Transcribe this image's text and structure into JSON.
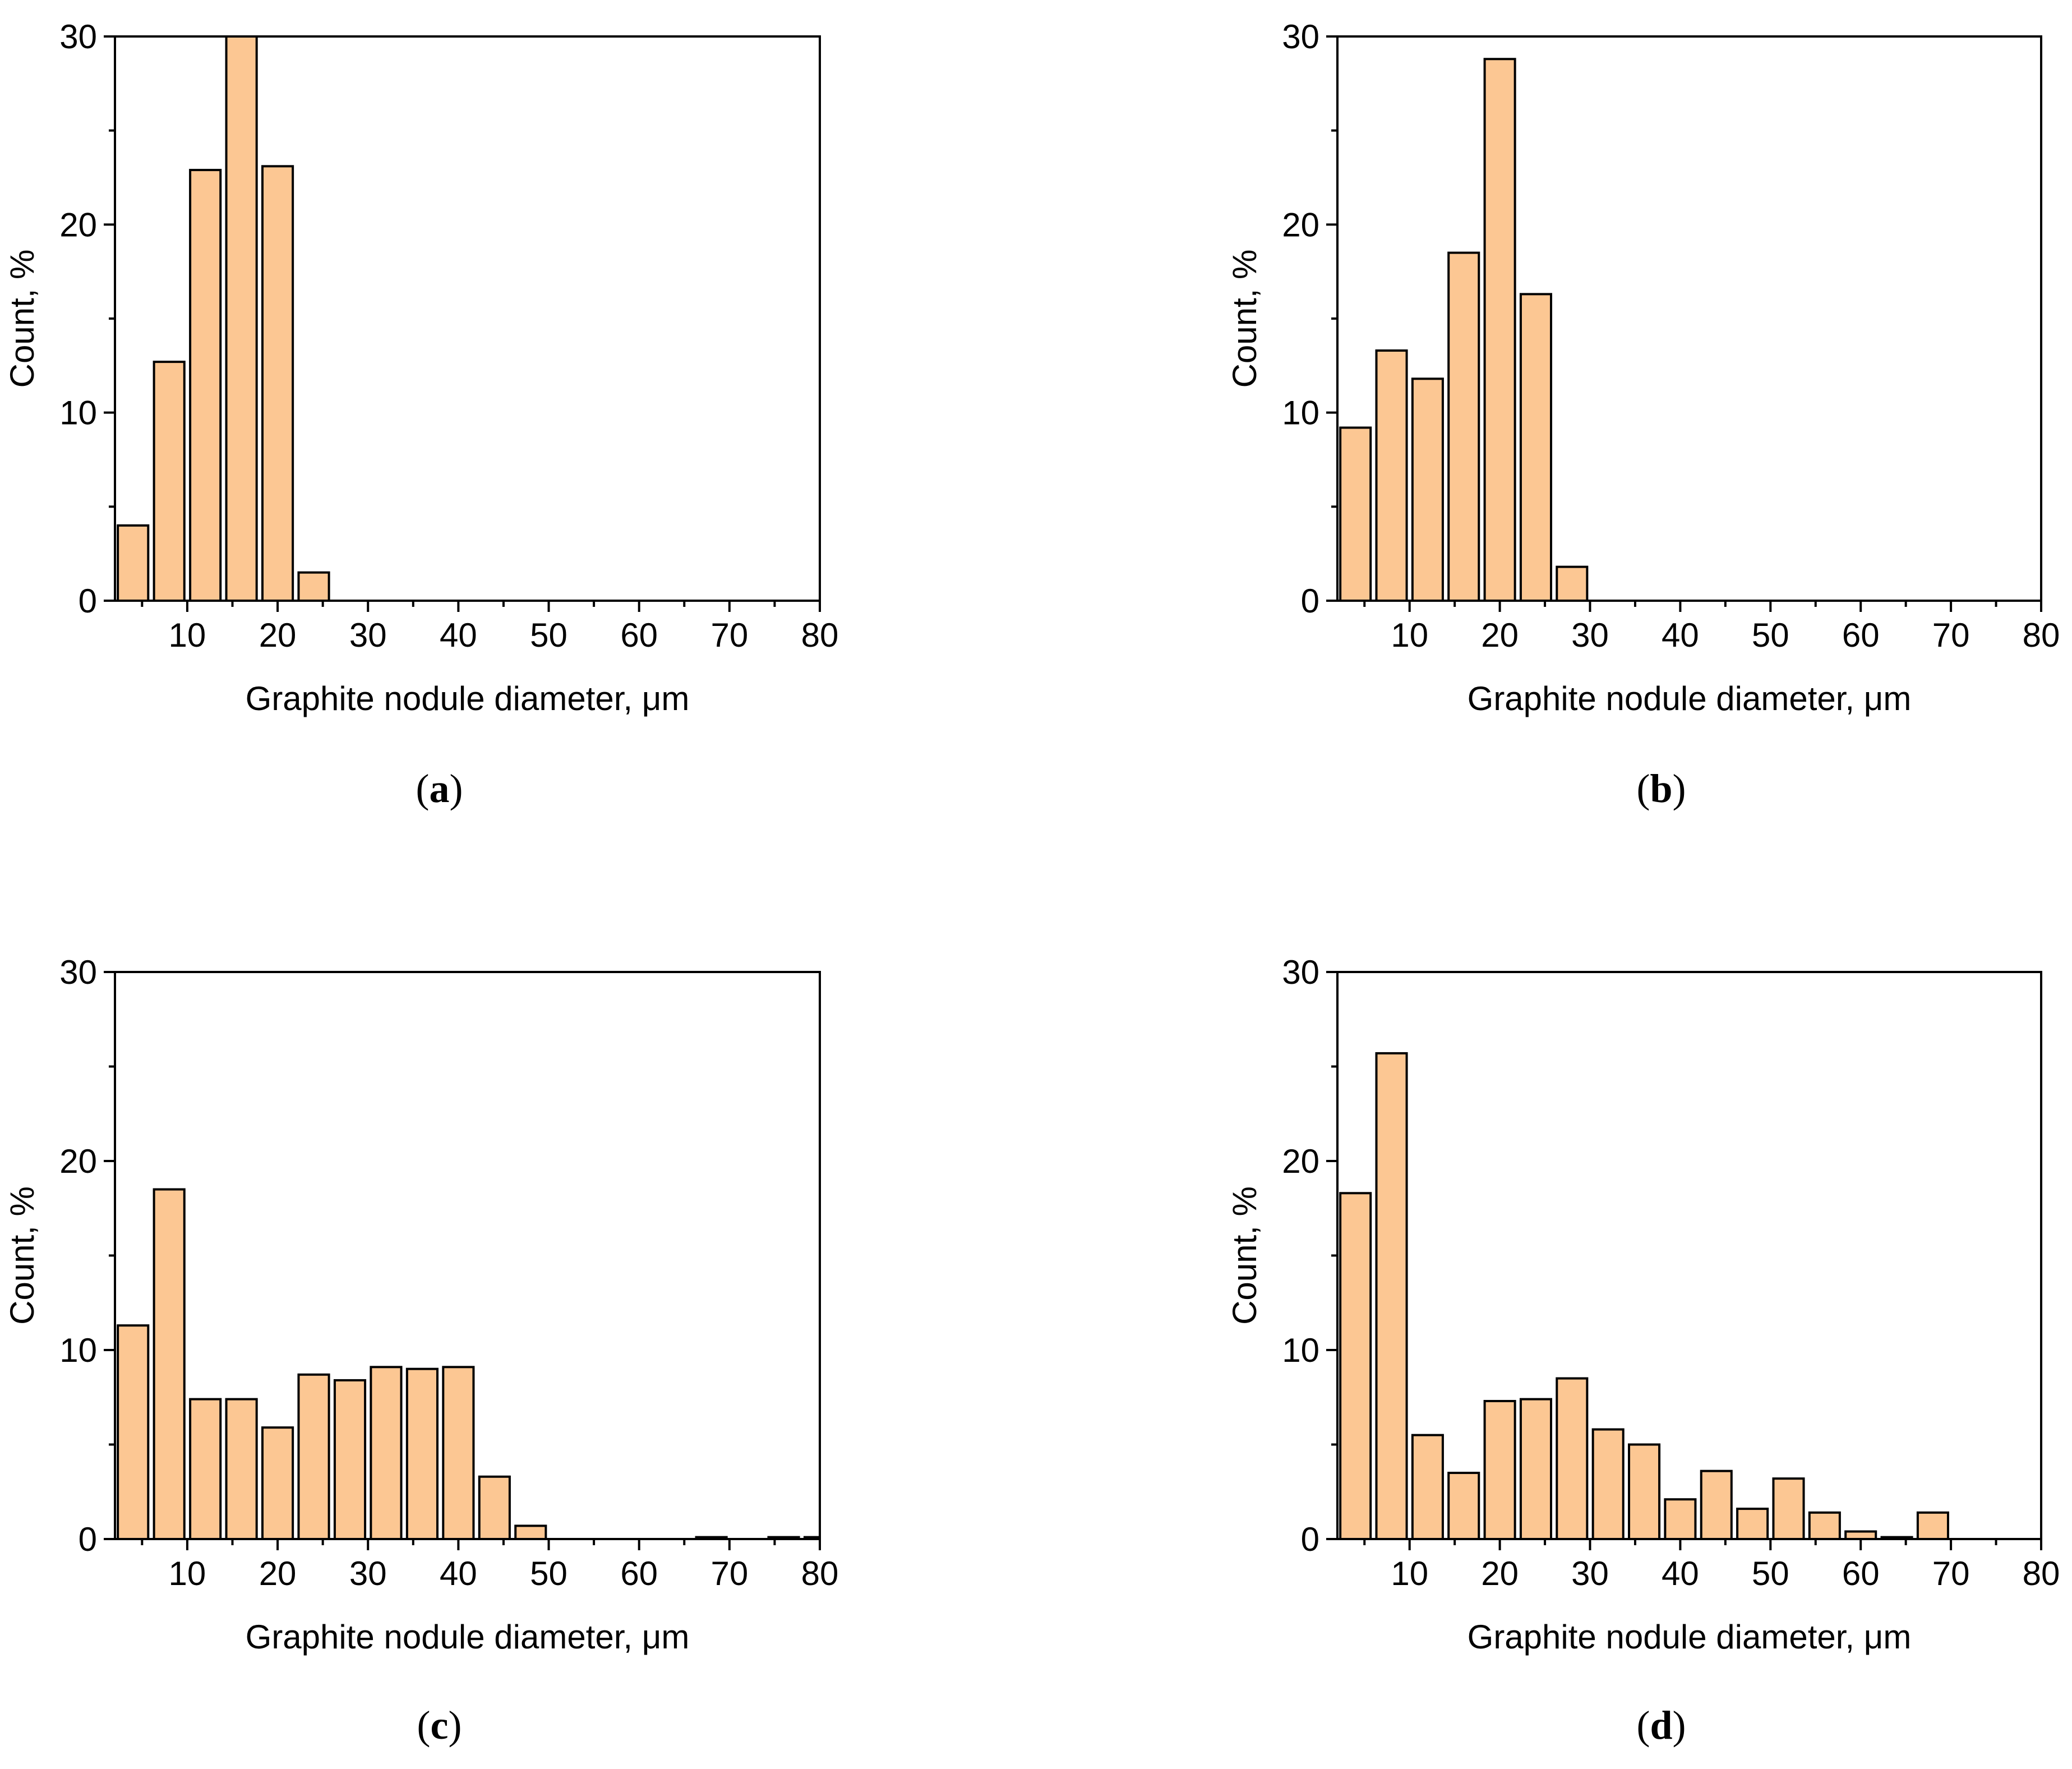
{
  "colors": {
    "bar_fill": "#fcc793",
    "bar_stroke": "#000000",
    "axis": "#000000"
  },
  "chart_data": [
    {
      "type": "bar",
      "panel_label": "a",
      "xlabel": "Graphite nodule diameter, μm",
      "ylabel": "Count, %",
      "xlim": [
        2,
        80
      ],
      "ylim": [
        0,
        30
      ],
      "xticks": [
        "10",
        "20",
        "30",
        "40",
        "50",
        "60",
        "70",
        "80"
      ],
      "yticks": [
        "0",
        "10",
        "20",
        "30"
      ],
      "bin_width": 4,
      "bins": [
        4,
        8,
        12,
        16,
        20,
        24,
        28,
        32,
        36,
        40,
        44,
        48,
        52,
        56,
        60,
        64,
        68,
        72,
        76,
        80
      ],
      "values": [
        4.0,
        12.7,
        22.9,
        30.0,
        23.1,
        1.5,
        0,
        0,
        0,
        0,
        0,
        0,
        0,
        0,
        0,
        0,
        0,
        0,
        0,
        0
      ]
    },
    {
      "type": "bar",
      "panel_label": "b",
      "xlabel": "Graphite nodule diameter, μm",
      "ylabel": "Count, %",
      "xlim": [
        2,
        80
      ],
      "ylim": [
        0,
        30
      ],
      "xticks": [
        "10",
        "20",
        "30",
        "40",
        "50",
        "60",
        "70",
        "80"
      ],
      "yticks": [
        "0",
        "10",
        "20",
        "30"
      ],
      "bin_width": 4,
      "bins": [
        4,
        8,
        12,
        16,
        20,
        24,
        28,
        32,
        36,
        40,
        44,
        48,
        52,
        56,
        60,
        64,
        68,
        72,
        76,
        80
      ],
      "values": [
        9.2,
        13.3,
        11.8,
        18.5,
        28.8,
        16.3,
        1.8,
        0,
        0,
        0,
        0,
        0,
        0,
        0,
        0,
        0,
        0,
        0,
        0,
        0
      ]
    },
    {
      "type": "bar",
      "panel_label": "c",
      "xlabel": "Graphite nodule diameter, μm",
      "ylabel": "Count, %",
      "xlim": [
        2,
        80
      ],
      "ylim": [
        0,
        30
      ],
      "xticks": [
        "10",
        "20",
        "30",
        "40",
        "50",
        "60",
        "70",
        "80"
      ],
      "yticks": [
        "0",
        "10",
        "20",
        "30"
      ],
      "bin_width": 4,
      "bins": [
        4,
        8,
        12,
        16,
        20,
        24,
        28,
        32,
        36,
        40,
        44,
        48,
        52,
        56,
        60,
        64,
        68,
        72,
        76,
        80
      ],
      "values": [
        11.3,
        18.5,
        7.4,
        7.4,
        5.9,
        8.7,
        8.4,
        9.1,
        9.0,
        9.1,
        3.3,
        0.7,
        0,
        0,
        0,
        0,
        0.1,
        0,
        0.1,
        0.1
      ]
    },
    {
      "type": "bar",
      "panel_label": "d",
      "xlabel": "Graphite nodule diameter, μm",
      "ylabel": "Count, %",
      "xlim": [
        2,
        80
      ],
      "ylim": [
        0,
        30
      ],
      "xticks": [
        "10",
        "20",
        "30",
        "40",
        "50",
        "60",
        "70",
        "80"
      ],
      "yticks": [
        "0",
        "10",
        "20",
        "30"
      ],
      "bin_width": 4,
      "bins": [
        4,
        8,
        12,
        16,
        20,
        24,
        28,
        32,
        36,
        40,
        44,
        48,
        52,
        56,
        60,
        64,
        68,
        72,
        76,
        80
      ],
      "values": [
        18.3,
        25.7,
        5.5,
        3.5,
        7.3,
        7.4,
        8.5,
        5.8,
        5.0,
        2.1,
        3.6,
        1.6,
        3.2,
        1.4,
        0.4,
        0.1,
        1.4,
        0,
        0,
        0
      ]
    }
  ]
}
